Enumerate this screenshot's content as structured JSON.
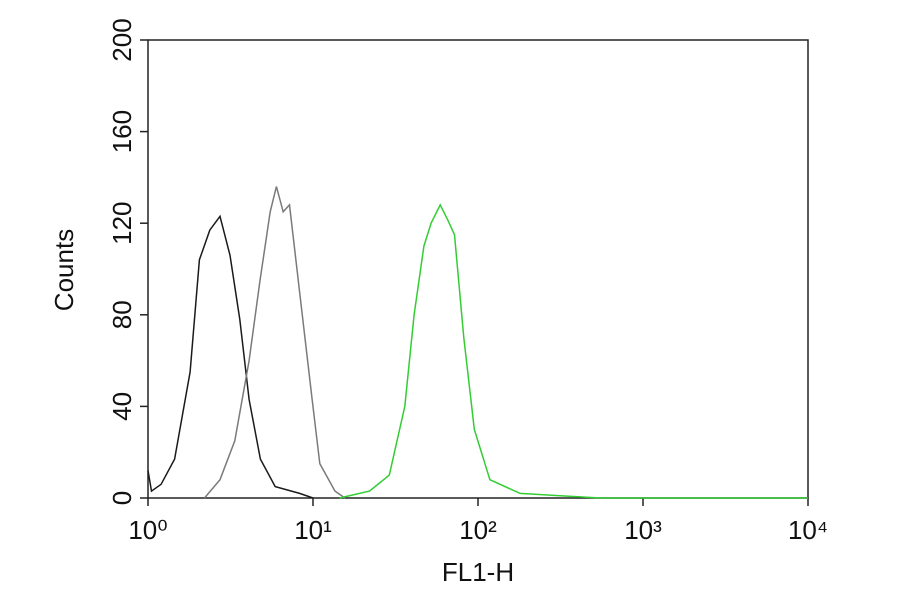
{
  "chart_data": {
    "type": "line",
    "xlabel": "FL1-H",
    "ylabel": "Counts",
    "xscale": "log",
    "xlim": [
      1,
      10000
    ],
    "xticks": [
      {
        "value": 1,
        "label": "10⁰"
      },
      {
        "value": 10,
        "label": "10¹"
      },
      {
        "value": 100,
        "label": "10²"
      },
      {
        "value": 1000,
        "label": "10³"
      },
      {
        "value": 10000,
        "label": "10⁴"
      }
    ],
    "ylim": [
      0,
      200
    ],
    "yticks": [
      0,
      40,
      80,
      120,
      160,
      200
    ],
    "series": [
      {
        "color": "#1a1a1a",
        "x": [
          1,
          1.05,
          1.2,
          1.45,
          1.8,
          2.05,
          2.37,
          2.73,
          3.14,
          3.6,
          4.1,
          4.8,
          5.9,
          8.3,
          10
        ],
        "values": [
          12,
          3,
          6,
          17,
          55,
          104,
          117,
          123,
          106,
          78,
          43,
          17,
          5,
          2,
          0
        ]
      },
      {
        "color": "#7a7a7a",
        "x": [
          2.2,
          2.73,
          3.36,
          4.1,
          4.77,
          5.5,
          6.0,
          6.6,
          7.2,
          8.3,
          9.8,
          11,
          13.6,
          15.6
        ],
        "values": [
          0,
          8,
          25,
          60,
          95,
          125,
          136,
          125,
          128,
          90,
          45,
          15,
          3,
          0
        ]
      },
      {
        "color": "#33cc33",
        "x": [
          14.5,
          22,
          29,
          36,
          41,
          47,
          52,
          59,
          65,
          72,
          82,
          95,
          118,
          180,
          315,
          550,
          10000
        ],
        "values": [
          0,
          3,
          10,
          40,
          80,
          110,
          120,
          128,
          122,
          115,
          70,
          30,
          8,
          2,
          1,
          0,
          0
        ]
      }
    ]
  }
}
